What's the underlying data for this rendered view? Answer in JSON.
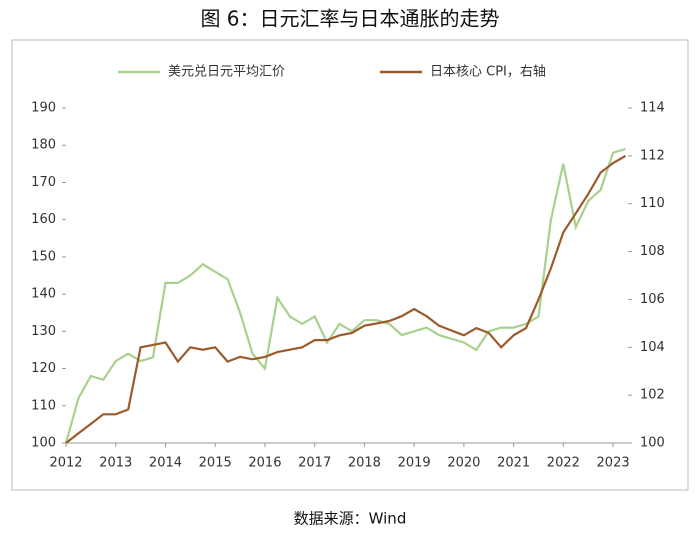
{
  "chart_data": {
    "type": "line",
    "title": "图 6：日元汇率与日本通胀的走势",
    "source": "数据来源：Wind",
    "xlim": [
      2012,
      2023.3
    ],
    "xticks": [
      2012,
      2013,
      2014,
      2015,
      2016,
      2017,
      2018,
      2019,
      2020,
      2021,
      2022,
      2023
    ],
    "ylim": [
      100,
      190
    ],
    "yticks": [
      100,
      110,
      120,
      130,
      140,
      150,
      160,
      170,
      180,
      190
    ],
    "y2lim": [
      100,
      114
    ],
    "y2ticks": [
      100,
      102,
      104,
      106,
      108,
      110,
      112,
      114
    ],
    "legend": "top",
    "x": [
      2012,
      2012.25,
      2012.5,
      2012.75,
      2013,
      2013.25,
      2013.5,
      2013.75,
      2014,
      2014.25,
      2014.5,
      2014.75,
      2015,
      2015.25,
      2015.5,
      2015.75,
      2016,
      2016.25,
      2016.5,
      2016.75,
      2017,
      2017.25,
      2017.5,
      2017.75,
      2018,
      2018.25,
      2018.5,
      2018.75,
      2019,
      2019.25,
      2019.5,
      2019.75,
      2020,
      2020.25,
      2020.5,
      2020.75,
      2021,
      2021.25,
      2021.5,
      2021.75,
      2022,
      2022.25,
      2022.5,
      2022.75,
      2023,
      2023.25
    ],
    "series": [
      {
        "name": "美元兑日元平均汇价",
        "color": "#a9d18e",
        "axis": "y",
        "values": [
          100,
          112,
          118,
          117,
          122,
          124,
          122,
          123,
          143,
          143,
          145,
          148,
          146,
          144,
          135,
          124,
          120,
          139,
          134,
          132,
          134,
          127,
          132,
          130,
          133,
          133,
          132,
          129,
          130,
          131,
          129,
          128,
          127,
          125,
          130,
          131,
          131,
          132,
          134,
          160,
          175,
          158,
          165,
          168,
          178,
          179
        ]
      },
      {
        "name": "日本核心 CPI，右轴",
        "color": "#9c5a2a",
        "axis": "y2",
        "values": [
          100,
          100.4,
          100.8,
          101.2,
          101.2,
          101.4,
          104.0,
          104.1,
          104.2,
          103.4,
          104.0,
          103.9,
          104.0,
          103.4,
          103.6,
          103.5,
          103.6,
          103.8,
          103.9,
          104.0,
          104.3,
          104.3,
          104.5,
          104.6,
          104.9,
          105.0,
          105.1,
          105.3,
          105.6,
          105.3,
          104.9,
          104.7,
          104.5,
          104.8,
          104.6,
          104.0,
          104.5,
          104.8,
          106.0,
          107.3,
          108.8,
          109.6,
          110.4,
          111.3,
          111.7,
          112.0
        ]
      }
    ]
  }
}
